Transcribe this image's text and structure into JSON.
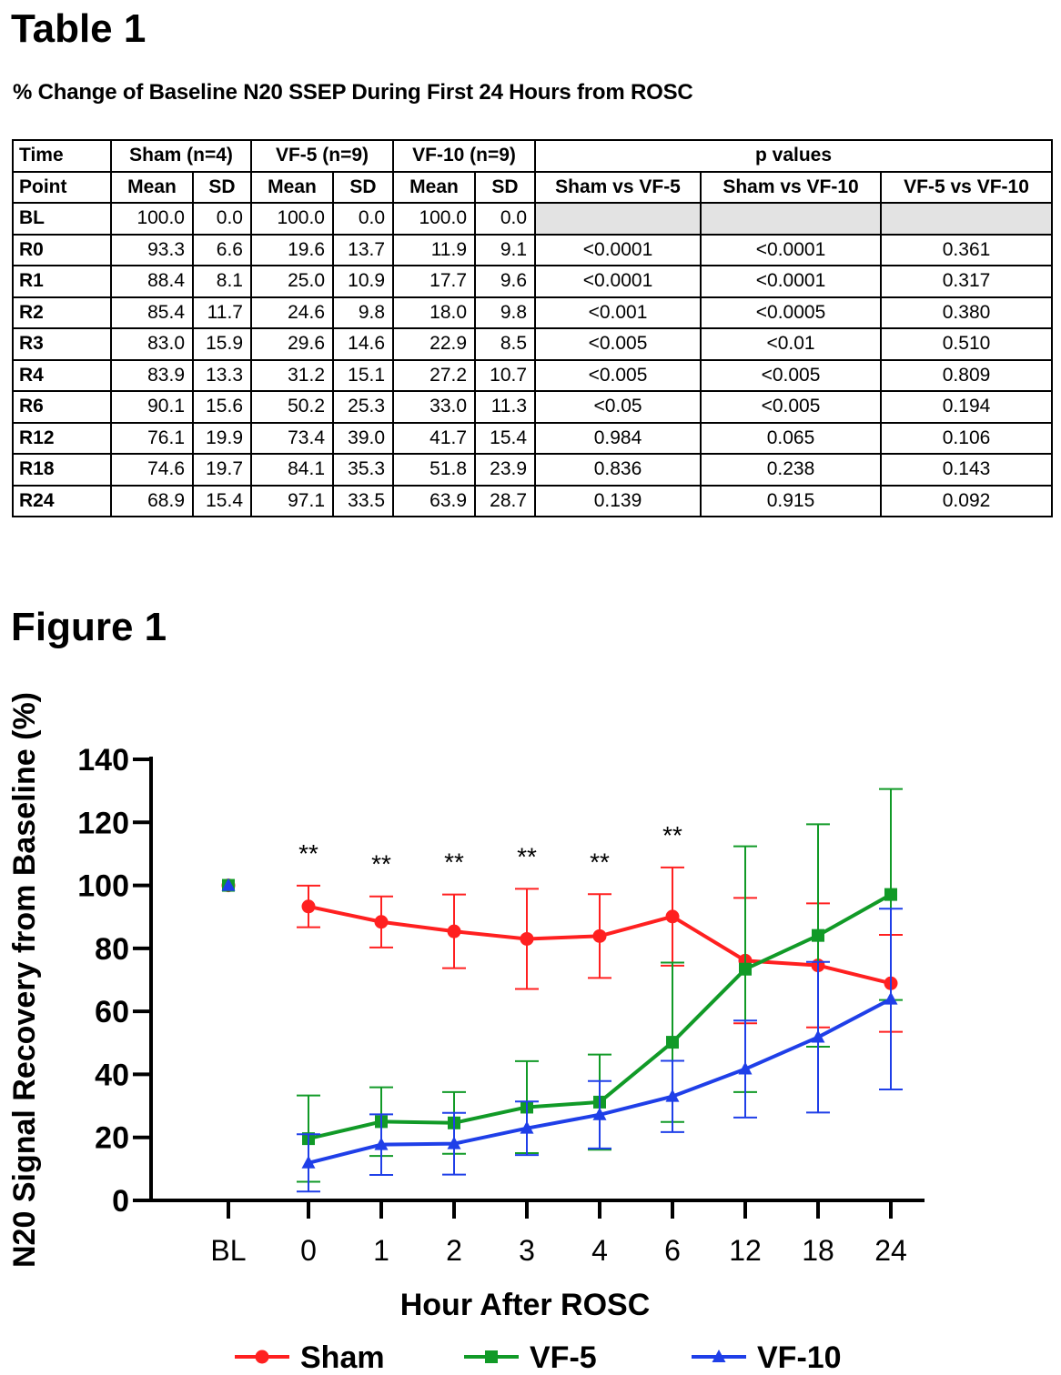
{
  "table": {
    "heading": "Table 1",
    "title": "% Change of Baseline N20 SSEP During First 24 Hours from ROSC",
    "col_time_top": "Time",
    "col_time_bottom": "Point",
    "groups": [
      "Sham (n=4)",
      "VF-5 (n=9)",
      "VF-10 (n=9)"
    ],
    "mean_label": "Mean",
    "sd_label": "SD",
    "pvalues_label": "p values",
    "comparisons": [
      "Sham vs VF-5",
      "Sham vs VF-10",
      "VF-5 vs VF-10"
    ],
    "rows": [
      {
        "tp": "BL",
        "v": [
          "100.0",
          "0.0",
          "100.0",
          "0.0",
          "100.0",
          "0.0"
        ],
        "p": [
          "",
          "",
          ""
        ]
      },
      {
        "tp": "R0",
        "v": [
          "93.3",
          "6.6",
          "19.6",
          "13.7",
          "11.9",
          "9.1"
        ],
        "p": [
          "<0.0001",
          "<0.0001",
          "0.361"
        ]
      },
      {
        "tp": "R1",
        "v": [
          "88.4",
          "8.1",
          "25.0",
          "10.9",
          "17.7",
          "9.6"
        ],
        "p": [
          "<0.0001",
          "<0.0001",
          "0.317"
        ]
      },
      {
        "tp": "R2",
        "v": [
          "85.4",
          "11.7",
          "24.6",
          "9.8",
          "18.0",
          "9.8"
        ],
        "p": [
          "<0.001",
          "<0.0005",
          "0.380"
        ]
      },
      {
        "tp": "R3",
        "v": [
          "83.0",
          "15.9",
          "29.6",
          "14.6",
          "22.9",
          "8.5"
        ],
        "p": [
          "<0.005",
          "<0.01",
          "0.510"
        ]
      },
      {
        "tp": "R4",
        "v": [
          "83.9",
          "13.3",
          "31.2",
          "15.1",
          "27.2",
          "10.7"
        ],
        "p": [
          "<0.005",
          "<0.005",
          "0.809"
        ]
      },
      {
        "tp": "R6",
        "v": [
          "90.1",
          "15.6",
          "50.2",
          "25.3",
          "33.0",
          "11.3"
        ],
        "p": [
          "<0.05",
          "<0.005",
          "0.194"
        ]
      },
      {
        "tp": "R12",
        "v": [
          "76.1",
          "19.9",
          "73.4",
          "39.0",
          "41.7",
          "15.4"
        ],
        "p": [
          "0.984",
          "0.065",
          "0.106"
        ]
      },
      {
        "tp": "R18",
        "v": [
          "74.6",
          "19.7",
          "84.1",
          "35.3",
          "51.8",
          "23.9"
        ],
        "p": [
          "0.836",
          "0.238",
          "0.143"
        ]
      },
      {
        "tp": "R24",
        "v": [
          "68.9",
          "15.4",
          "97.1",
          "33.5",
          "63.9",
          "28.7"
        ],
        "p": [
          "0.139",
          "0.915",
          "0.092"
        ]
      }
    ]
  },
  "figure": {
    "heading": "Figure 1"
  },
  "chart_data": {
    "type": "line",
    "title": "",
    "xlabel": "Hour After ROSC",
    "ylabel": "N20 Signal Recovery from Baseline (%)",
    "categories": [
      "BL",
      "0",
      "1",
      "2",
      "3",
      "4",
      "6",
      "12",
      "18",
      "24"
    ],
    "ylim": [
      0,
      140
    ],
    "yticks": [
      0,
      20,
      40,
      60,
      80,
      100,
      120,
      140
    ],
    "significance_marker": "**",
    "significant_categories": [
      "0",
      "1",
      "2",
      "3",
      "4",
      "6"
    ],
    "legend_position": "bottom",
    "series": [
      {
        "name": "Sham",
        "color": "#ff2020",
        "marker": "circle",
        "values": [
          100.0,
          93.3,
          88.4,
          85.4,
          83.0,
          83.9,
          90.1,
          76.1,
          74.6,
          68.9
        ],
        "sd": [
          0.0,
          6.6,
          8.1,
          11.7,
          15.9,
          13.3,
          15.6,
          19.9,
          19.7,
          15.4
        ]
      },
      {
        "name": "VF-5",
        "color": "#119a27",
        "marker": "square",
        "values": [
          100.0,
          19.6,
          25.0,
          24.6,
          29.6,
          31.2,
          50.2,
          73.4,
          84.1,
          97.1
        ],
        "sd": [
          0.0,
          13.7,
          10.9,
          9.8,
          14.6,
          15.1,
          25.3,
          39.0,
          35.3,
          33.5
        ]
      },
      {
        "name": "VF-10",
        "color": "#1f3fe8",
        "marker": "triangle",
        "values": [
          100.0,
          11.9,
          17.7,
          18.0,
          22.9,
          27.2,
          33.0,
          41.7,
          51.8,
          63.9
        ],
        "sd": [
          0.0,
          9.1,
          9.6,
          9.8,
          8.5,
          10.7,
          11.3,
          15.4,
          23.9,
          28.7
        ]
      }
    ]
  }
}
